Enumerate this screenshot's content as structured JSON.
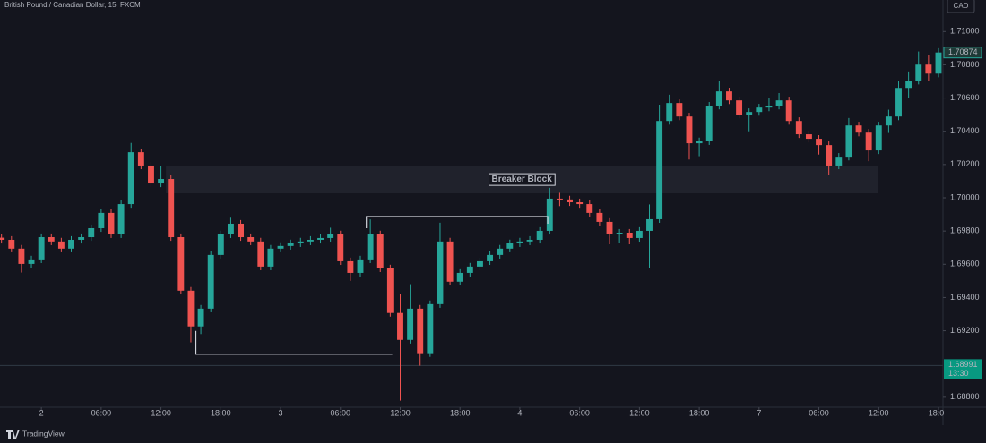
{
  "chart_data": {
    "type": "candlestick",
    "title": "British Pound / Canadian Dollar, 15, FXCM",
    "currency": "CAD",
    "brand": "TradingView",
    "up_color": "#26a69a",
    "down_color": "#ef5350",
    "xlim": [
      -4.15,
      90.45
    ],
    "ylim": [
      1.6874,
      1.7119
    ],
    "xticks": [
      {
        "value": 0,
        "label": "2"
      },
      {
        "value": 6,
        "label": "06:00"
      },
      {
        "value": 12,
        "label": "12:00"
      },
      {
        "value": 18,
        "label": "18:00"
      },
      {
        "value": 24,
        "label": "3"
      },
      {
        "value": 30,
        "label": "06:00"
      },
      {
        "value": 36,
        "label": "12:00"
      },
      {
        "value": 42,
        "label": "18:00"
      },
      {
        "value": 48,
        "label": "4"
      },
      {
        "value": 54,
        "label": "06:00"
      },
      {
        "value": 60,
        "label": "12:00"
      },
      {
        "value": 66,
        "label": "18:00"
      },
      {
        "value": 72,
        "label": "7"
      },
      {
        "value": 78,
        "label": "06:00"
      },
      {
        "value": 84,
        "label": "12:00"
      },
      {
        "value": 90,
        "label": "18:00"
      }
    ],
    "yticks": [
      {
        "value": 1.688,
        "label": "1.68800"
      },
      {
        "value": 1.692,
        "label": "1.69200"
      },
      {
        "value": 1.694,
        "label": "1.69400"
      },
      {
        "value": 1.696,
        "label": "1.69600"
      },
      {
        "value": 1.698,
        "label": "1.69800"
      },
      {
        "value": 1.7,
        "label": "1.70000"
      },
      {
        "value": 1.702,
        "label": "1.70200"
      },
      {
        "value": 1.704,
        "label": "1.70400"
      },
      {
        "value": 1.706,
        "label": "1.70600"
      },
      {
        "value": 1.708,
        "label": "1.70800"
      },
      {
        "value": 1.71,
        "label": "1.71000"
      }
    ],
    "x": [
      -4,
      -3,
      -2,
      -1,
      0,
      1,
      2,
      3,
      4,
      5,
      6,
      7,
      8,
      9,
      10,
      11,
      12,
      13,
      14,
      15,
      16,
      17,
      18,
      19,
      20,
      21,
      22,
      23,
      24,
      25,
      26,
      27,
      28,
      29,
      30,
      31,
      32,
      33,
      34,
      35,
      36,
      37,
      38,
      39,
      40,
      41,
      42,
      43,
      44,
      45,
      46,
      47,
      48,
      49,
      50,
      51,
      52,
      53,
      54,
      55,
      56,
      57,
      58,
      59,
      60,
      61,
      62,
      63,
      64,
      65,
      66,
      67,
      68,
      69,
      70,
      71,
      72,
      73,
      74,
      75,
      76,
      77,
      78,
      79,
      80,
      81,
      82,
      83,
      84,
      85,
      86,
      87,
      88,
      89,
      90
    ],
    "open": [
      1.6976,
      1.69747,
      1.69694,
      1.69602,
      1.69629,
      1.69763,
      1.69737,
      1.69694,
      1.69747,
      1.69763,
      1.69817,
      1.69909,
      1.6978,
      1.69962,
      1.70274,
      1.70194,
      1.70086,
      1.70113,
      1.69763,
      1.69441,
      1.69226,
      1.69333,
      1.69656,
      1.6978,
      1.69844,
      1.69763,
      1.69737,
      1.69586,
      1.69694,
      1.6971,
      1.69726,
      1.69737,
      1.69747,
      1.69758,
      1.6978,
      1.69618,
      1.69548,
      1.69629,
      1.6978,
      1.69575,
      1.69307,
      1.69145,
      1.69333,
      1.69065,
      1.6936,
      1.69737,
      1.69495,
      1.69548,
      1.69586,
      1.69618,
      1.69656,
      1.69694,
      1.69726,
      1.69737,
      1.69747,
      1.69801,
      1.69995,
      1.6999,
      1.69973,
      1.69962,
      1.69909,
      1.69855,
      1.6978,
      1.6979,
      1.69758,
      1.69801,
      1.69871,
      1.70462,
      1.7057,
      1.70489,
      1.70328,
      1.7034,
      1.70554,
      1.7064,
      1.70586,
      1.705,
      1.70516,
      1.70543,
      1.70554,
      1.70586,
      1.70462,
      1.70382,
      1.70355,
      1.70317,
      1.70194,
      1.70247,
      1.70435,
      1.70392,
      1.70285,
      1.70435,
      1.70489,
      1.70661,
      1.70704,
      1.70801,
      1.70747
    ],
    "high": [
      1.69782,
      1.69769,
      1.69716,
      1.69651,
      1.69785,
      1.69785,
      1.69759,
      1.69769,
      1.69785,
      1.69839,
      1.69931,
      1.69931,
      1.69984,
      1.7033,
      1.70296,
      1.70216,
      1.7019,
      1.70135,
      1.69785,
      1.69463,
      1.69355,
      1.69678,
      1.69802,
      1.6988,
      1.69866,
      1.69785,
      1.69759,
      1.69716,
      1.69732,
      1.69748,
      1.69759,
      1.69769,
      1.6978,
      1.6982,
      1.69802,
      1.6964,
      1.69651,
      1.6987,
      1.69802,
      1.69597,
      1.6942,
      1.6948,
      1.69355,
      1.69382,
      1.6985,
      1.69759,
      1.6957,
      1.69608,
      1.6964,
      1.69678,
      1.69716,
      1.69748,
      1.69759,
      1.69769,
      1.69823,
      1.7006,
      1.7003,
      1.70012,
      1.69995,
      1.69984,
      1.69931,
      1.69877,
      1.69812,
      1.69812,
      1.69823,
      1.6996,
      1.7056,
      1.7062,
      1.70592,
      1.70511,
      1.70362,
      1.70576,
      1.707,
      1.70662,
      1.70608,
      1.70538,
      1.70565,
      1.706,
      1.7063,
      1.70608,
      1.70484,
      1.70404,
      1.70377,
      1.70339,
      1.70269,
      1.7048,
      1.70457,
      1.70414,
      1.70457,
      1.7053,
      1.707,
      1.7076,
      1.7088,
      1.7086,
      1.709
    ],
    "low": [
      1.69725,
      1.69672,
      1.6955,
      1.6958,
      1.69607,
      1.69715,
      1.69672,
      1.69672,
      1.69725,
      1.69741,
      1.69795,
      1.69758,
      1.69758,
      1.6994,
      1.70172,
      1.70064,
      1.70064,
      1.69741,
      1.69419,
      1.6913,
      1.6918,
      1.69311,
      1.69634,
      1.69758,
      1.69741,
      1.69715,
      1.69564,
      1.69564,
      1.69672,
      1.69688,
      1.69704,
      1.69715,
      1.69725,
      1.69736,
      1.69596,
      1.695,
      1.69526,
      1.69607,
      1.69553,
      1.69285,
      1.6878,
      1.69123,
      1.6899,
      1.69043,
      1.69338,
      1.69473,
      1.69473,
      1.69526,
      1.69564,
      1.69596,
      1.69634,
      1.69672,
      1.69704,
      1.69715,
      1.69725,
      1.69779,
      1.6995,
      1.69951,
      1.6994,
      1.69887,
      1.69833,
      1.6972,
      1.6973,
      1.6972,
      1.69736,
      1.69575,
      1.69849,
      1.7044,
      1.70467,
      1.7023,
      1.7025,
      1.70318,
      1.70532,
      1.70564,
      1.70478,
      1.704,
      1.70494,
      1.70521,
      1.70532,
      1.7044,
      1.7036,
      1.70333,
      1.7026,
      1.7014,
      1.70172,
      1.70225,
      1.7037,
      1.7022,
      1.70263,
      1.7039,
      1.70467,
      1.706,
      1.70682,
      1.707,
      1.70725
    ],
    "close": [
      1.69747,
      1.69694,
      1.69602,
      1.69629,
      1.69763,
      1.69737,
      1.69694,
      1.69747,
      1.69763,
      1.69817,
      1.69909,
      1.6978,
      1.69962,
      1.70274,
      1.70194,
      1.70086,
      1.70113,
      1.69763,
      1.69441,
      1.69226,
      1.69333,
      1.69656,
      1.6978,
      1.69844,
      1.69763,
      1.69737,
      1.69586,
      1.69694,
      1.6971,
      1.69726,
      1.69737,
      1.69747,
      1.69758,
      1.6978,
      1.69618,
      1.69548,
      1.69629,
      1.6978,
      1.69575,
      1.69307,
      1.69145,
      1.69333,
      1.69065,
      1.6936,
      1.69737,
      1.69495,
      1.69548,
      1.69586,
      1.69618,
      1.69656,
      1.69694,
      1.69726,
      1.69737,
      1.69747,
      1.69801,
      1.69995,
      1.6999,
      1.69973,
      1.69962,
      1.69909,
      1.69855,
      1.6978,
      1.6979,
      1.69758,
      1.69801,
      1.69871,
      1.70462,
      1.7057,
      1.70489,
      1.70328,
      1.7034,
      1.70554,
      1.7064,
      1.70586,
      1.705,
      1.70516,
      1.70543,
      1.70554,
      1.70586,
      1.70462,
      1.70382,
      1.70355,
      1.70317,
      1.70194,
      1.70247,
      1.70435,
      1.70392,
      1.70285,
      1.70435,
      1.70489,
      1.70661,
      1.70704,
      1.70801,
      1.70747,
      1.70874
    ],
    "last_price": {
      "value": 1.70874,
      "label": "1.70874"
    },
    "price_line": {
      "value": 1.68991,
      "label": "1.68991",
      "time": "13:30"
    },
    "zone": {
      "label": "Breaker Block",
      "x": [
        12.5,
        83.9
      ],
      "y": [
        1.70027,
        1.70194
      ]
    },
    "drawings": [
      {
        "x": [
          15.5,
          15.5,
          35.2
        ],
        "y": [
          1.69199,
          1.69059,
          1.69059
        ]
      },
      {
        "x": [
          32.6,
          32.6,
          50.8,
          50.8
        ],
        "y": [
          1.69817,
          1.69887,
          1.69887,
          1.69844
        ]
      }
    ]
  }
}
